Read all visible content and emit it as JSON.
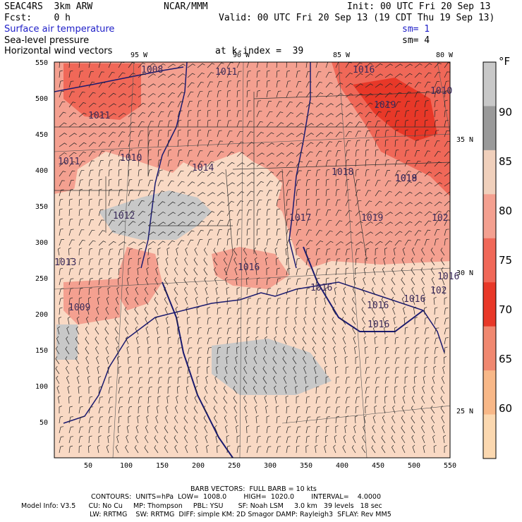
{
  "header": {
    "left_line1": "SEAC4RS  3km ARW",
    "center_line1": "NCAR/MMM",
    "right_line1": "Init: 00 UTC Fri 20 Sep 13",
    "left_line2": "Fcst:    0 h",
    "right_line2": "Valid: 00 UTC Fri 20 Sep 13 (19 CDT Thu 19 Sep 13)",
    "field1": "Surface air temperature",
    "field1_sm": "sm= 1",
    "field2": "Sea-level pressure",
    "field2_sm": "sm= 4",
    "field3": "Horizontal wind vectors",
    "level": "at k-index =  39"
  },
  "axes": {
    "x_ticks": [
      "50",
      "100",
      "150",
      "200",
      "250",
      "300",
      "350",
      "400",
      "450",
      "500",
      "550"
    ],
    "y_ticks": [
      "550",
      "500",
      "450",
      "400",
      "350",
      "300",
      "250",
      "200",
      "150",
      "100",
      "50"
    ],
    "lon_labels": [
      "95 W",
      "90 W",
      "85 W",
      "80 W"
    ],
    "lat_labels": [
      "35 N",
      "30 N",
      "25 N"
    ]
  },
  "colorbar": {
    "unit": "°F",
    "labels": [
      "90",
      "85",
      "80",
      "75",
      "70",
      "65",
      "60"
    ],
    "colors": [
      "#c8c8c8",
      "#9a9a9a",
      "#f0d0bc",
      "#f4a090",
      "#f06858",
      "#e83828",
      "#f08870",
      "#f8b888",
      "#fbd8b0"
    ]
  },
  "pressure_labels": [
    "1008",
    "1011",
    "1016",
    "1011",
    "1011",
    "1010",
    "1014",
    "1019",
    "1018",
    "1019",
    "1012",
    "1017",
    "1019",
    "1016",
    "1016",
    "1013",
    "1009",
    "1016",
    "1016",
    "1016",
    "1016",
    "1010",
    "102",
    "102",
    "1018"
  ],
  "footer": {
    "barb": "BARB VECTORS:  FULL BARB = 10 kts",
    "contours": "CONTOURS:  UNITS=hPa  LOW=  1008.0        HIGH=  1020.0        INTERVAL=    4.0000",
    "model1": "Model Info: V3.5      CU: No Cu     MP: Thompson     PBL: YSU       SF: Noah LSM     3.0 km   39 levels   18 sec",
    "model2": "LW: RRTMG    SW: RRTMG  DIFF: simple KM: 2D Smagor DAMP: Rayleigh3  SFLAY: Rev MM5"
  }
}
